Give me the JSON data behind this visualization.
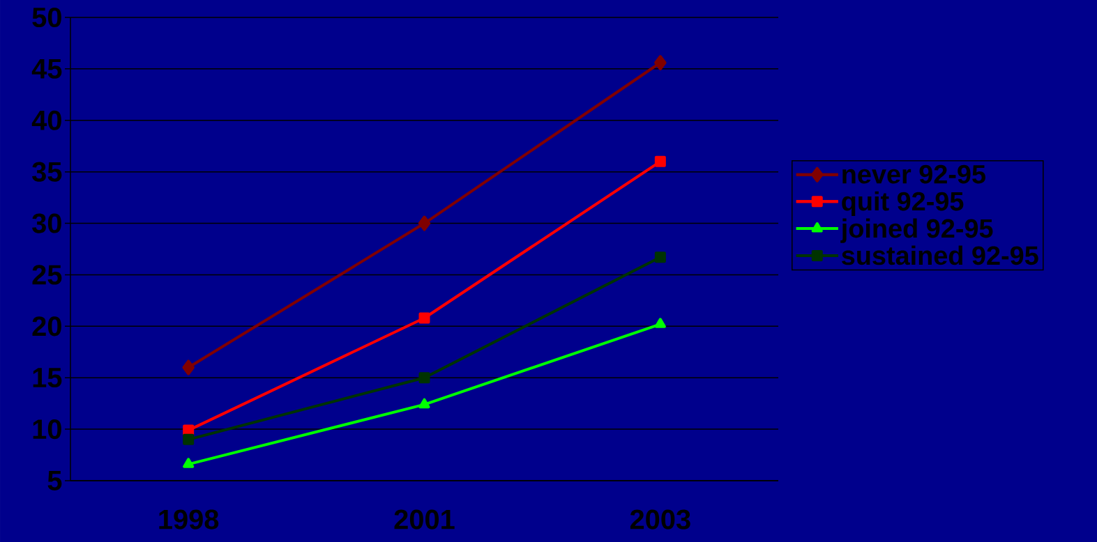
{
  "chart_data": {
    "type": "line",
    "categories": [
      "1998",
      "2001",
      "2003"
    ],
    "series": [
      {
        "name": "never 92-95",
        "color": "#800000",
        "marker": "diamond",
        "values": [
          16.0,
          30.0,
          45.6
        ]
      },
      {
        "name": "quit 92-95",
        "color": "#ff0000",
        "marker": "square",
        "values": [
          9.9,
          20.8,
          36.0
        ]
      },
      {
        "name": "joined 92-95",
        "color": "#00ff00",
        "marker": "triangle",
        "values": [
          6.6,
          12.4,
          20.2
        ]
      },
      {
        "name": "sustained 92-95",
        "color": "#003300",
        "marker": "square",
        "values": [
          9.0,
          15.0,
          26.7
        ]
      }
    ],
    "ylim": [
      5,
      50
    ],
    "yticks": [
      5,
      10,
      15,
      20,
      25,
      30,
      35,
      40,
      45,
      50
    ],
    "grid": "y",
    "legend": "right",
    "line_style": "solid"
  }
}
